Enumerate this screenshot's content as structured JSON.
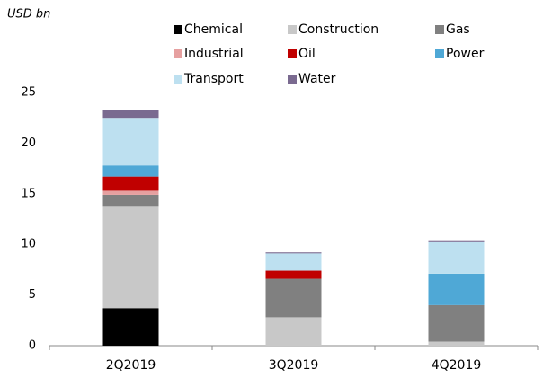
{
  "chart_data": {
    "type": "stacked_bar",
    "unit_label": "USD bn",
    "categories": [
      "2Q2019",
      "3Q2019",
      "4Q2019"
    ],
    "series": [
      {
        "name": "Chemical",
        "color": "#000000",
        "values": [
          3.7,
          0,
          0
        ]
      },
      {
        "name": "Construction",
        "color": "#c8c8c8",
        "values": [
          10.1,
          2.8,
          0.4
        ]
      },
      {
        "name": "Gas",
        "color": "#808080",
        "values": [
          1.1,
          3.8,
          3.6
        ]
      },
      {
        "name": "Industrial",
        "color": "#e6a0a0",
        "values": [
          0.4,
          0,
          0
        ]
      },
      {
        "name": "Oil",
        "color": "#c00000",
        "values": [
          1.4,
          0.8,
          0
        ]
      },
      {
        "name": "Power",
        "color": "#4fa8d6",
        "values": [
          1.1,
          0,
          3.1
        ]
      },
      {
        "name": "Transport",
        "color": "#bde0f0",
        "values": [
          4.7,
          1.7,
          3.2
        ]
      },
      {
        "name": "Water",
        "color": "#7a6a90",
        "values": [
          0.8,
          0.1,
          0.1
        ]
      }
    ],
    "ylim": [
      0,
      25
    ],
    "yticks": [
      0,
      5,
      10,
      15,
      20,
      25
    ]
  }
}
